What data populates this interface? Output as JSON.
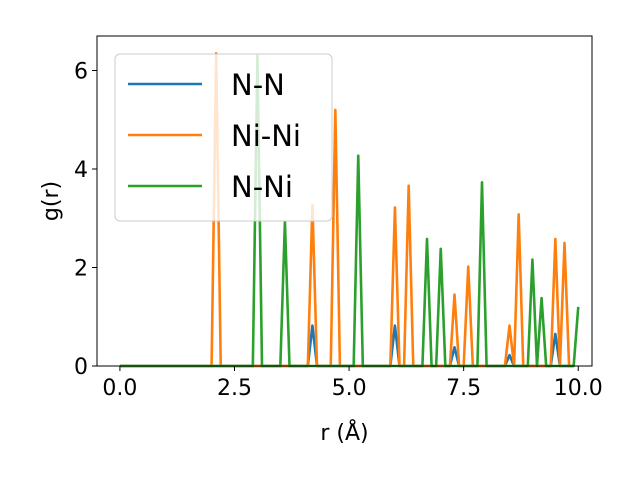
{
  "chart_data": {
    "type": "line",
    "title": "",
    "xlabel": "r (Å)",
    "ylabel": "g(r)",
    "xlim": [
      -0.5,
      10.3
    ],
    "ylim": [
      0,
      6.7
    ],
    "xticks": [
      0.0,
      2.5,
      5.0,
      7.5,
      10.0
    ],
    "xtick_labels": [
      "0.0",
      "2.5",
      "5.0",
      "7.5",
      "10.0"
    ],
    "yticks": [
      0,
      2,
      4,
      6
    ],
    "ytick_labels": [
      "0",
      "2",
      "4",
      "6"
    ],
    "grid": false,
    "legend_position": "top-left",
    "series": [
      {
        "name": "N-N",
        "color": "#1f77b4",
        "points": [
          [
            0,
            0
          ],
          [
            4.1,
            0
          ],
          [
            4.2,
            0.82
          ],
          [
            4.3,
            0
          ],
          [
            5.9,
            0
          ],
          [
            6.0,
            0.82
          ],
          [
            6.1,
            0
          ],
          [
            7.2,
            0
          ],
          [
            7.3,
            0.38
          ],
          [
            7.4,
            0
          ],
          [
            8.4,
            0
          ],
          [
            8.5,
            0.22
          ],
          [
            8.6,
            0
          ],
          [
            9.4,
            0
          ],
          [
            9.5,
            0.65
          ],
          [
            9.6,
            0
          ],
          [
            9.9,
            0
          ]
        ]
      },
      {
        "name": "Ni-Ni",
        "color": "#ff7f0e",
        "points": [
          [
            0,
            0
          ],
          [
            2.0,
            0
          ],
          [
            2.1,
            6.35
          ],
          [
            2.2,
            0
          ],
          [
            4.1,
            0
          ],
          [
            4.2,
            3.27
          ],
          [
            4.3,
            0
          ],
          [
            4.6,
            0
          ],
          [
            4.7,
            5.2
          ],
          [
            4.8,
            0
          ],
          [
            5.9,
            0
          ],
          [
            6.0,
            3.22
          ],
          [
            6.1,
            0
          ],
          [
            6.2,
            0
          ],
          [
            6.3,
            3.66
          ],
          [
            6.4,
            0
          ],
          [
            7.2,
            0
          ],
          [
            7.3,
            1.45
          ],
          [
            7.4,
            0
          ],
          [
            7.5,
            0
          ],
          [
            7.6,
            2.02
          ],
          [
            7.7,
            0
          ],
          [
            8.4,
            0
          ],
          [
            8.5,
            0.82
          ],
          [
            8.6,
            0
          ],
          [
            8.7,
            3.08
          ],
          [
            8.8,
            0
          ],
          [
            9.4,
            0
          ],
          [
            9.5,
            2.58
          ],
          [
            9.6,
            0
          ],
          [
            9.7,
            2.5
          ],
          [
            9.8,
            0
          ],
          [
            9.9,
            0
          ]
        ]
      },
      {
        "name": "N-Ni",
        "color": "#2ca02c",
        "points": [
          [
            0,
            0
          ],
          [
            2.9,
            0
          ],
          [
            3.0,
            6.3
          ],
          [
            3.1,
            0
          ],
          [
            3.5,
            0
          ],
          [
            3.6,
            2.93
          ],
          [
            3.7,
            0
          ],
          [
            5.1,
            0
          ],
          [
            5.2,
            4.27
          ],
          [
            5.3,
            0
          ],
          [
            6.6,
            0
          ],
          [
            6.7,
            2.58
          ],
          [
            6.8,
            0
          ],
          [
            6.9,
            0
          ],
          [
            7.0,
            2.38
          ],
          [
            7.1,
            0
          ],
          [
            7.8,
            0
          ],
          [
            7.9,
            3.73
          ],
          [
            8.0,
            0
          ],
          [
            8.9,
            0
          ],
          [
            9.0,
            2.16
          ],
          [
            9.1,
            0
          ],
          [
            9.2,
            1.38
          ],
          [
            9.3,
            0
          ],
          [
            9.9,
            0
          ],
          [
            10.0,
            1.2
          ]
        ]
      }
    ]
  }
}
